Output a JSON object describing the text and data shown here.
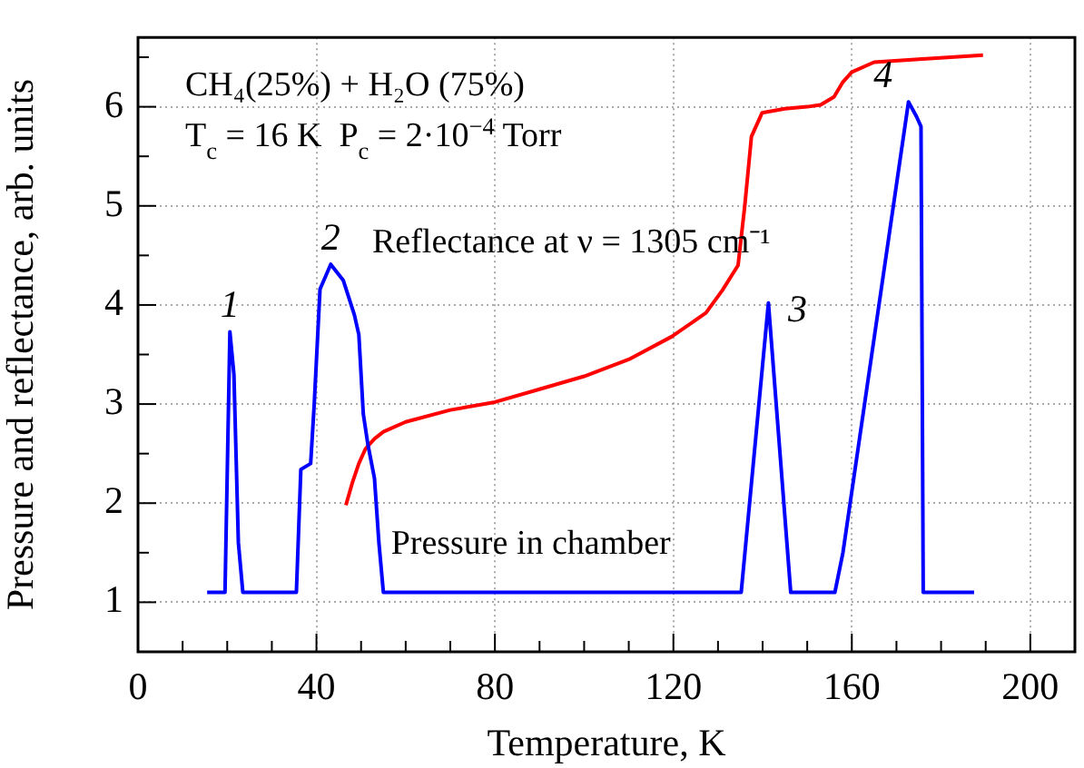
{
  "chart_data": {
    "type": "line",
    "xlabel": "Temperature, K",
    "ylabel": "Pressure and reflectance, arb. units",
    "xlim": [
      0,
      210
    ],
    "ylim": [
      0.5,
      6.7
    ],
    "xticks": [
      0,
      {
        "value": 10,
        "label": null
      },
      {
        "value": 20,
        "label": null
      },
      {
        "value": 30,
        "label": null
      },
      40,
      {
        "value": 50,
        "label": null
      },
      {
        "value": 60,
        "label": null
      },
      {
        "value": 70,
        "label": null
      },
      80,
      {
        "value": 90,
        "label": null
      },
      {
        "value": 100,
        "label": null
      },
      {
        "value": 110,
        "label": null
      },
      120,
      {
        "value": 130,
        "label": null
      },
      {
        "value": 140,
        "label": null
      },
      {
        "value": 150,
        "label": null
      },
      160,
      {
        "value": 170,
        "label": null
      },
      {
        "value": 180,
        "label": null
      },
      {
        "value": 190,
        "label": null
      },
      200
    ],
    "yticks": [
      {
        "value": 0.5,
        "label": null
      },
      1,
      {
        "value": 1.5,
        "label": null
      },
      2,
      {
        "value": 2.5,
        "label": null
      },
      3,
      {
        "value": 3.5,
        "label": null
      },
      4,
      {
        "value": 4.5,
        "label": null
      },
      5,
      {
        "value": 5.5,
        "label": null
      },
      6,
      {
        "value": 6.5,
        "label": null
      }
    ],
    "grid": true,
    "legend": false,
    "marker": "none",
    "line_style": "solid",
    "series": [
      {
        "name": "Pressure in chamber",
        "color": "#0000ff",
        "x": [
          15.5,
          19.5,
          20.6,
          21.5,
          22.5,
          23.5,
          35.5,
          36.5,
          38.7,
          39.5,
          40.8,
          43.2,
          46,
          48.5,
          49.5,
          50.5,
          51.5,
          53,
          54,
          55,
          135.2,
          141.3,
          146.3,
          156.2,
          158,
          172.7,
          174.5,
          175.5,
          176,
          187.4
        ],
        "values": [
          1.1,
          1.1,
          3.73,
          3.3,
          1.6,
          1.1,
          1.1,
          2.34,
          2.4,
          3.0,
          4.16,
          4.41,
          4.25,
          3.9,
          3.7,
          2.9,
          2.6,
          2.25,
          1.6,
          1.1,
          1.1,
          4.02,
          1.1,
          1.1,
          1.5,
          6.05,
          5.9,
          5.8,
          1.1,
          1.1
        ]
      },
      {
        "name": "Reflectance at ν = 1305 cm⁻¹",
        "color": "#ff0000",
        "x": [
          46.6,
          48,
          49.5,
          51,
          53,
          55,
          60,
          70,
          80,
          90,
          100,
          110,
          119.6,
          127.3,
          131,
          134.5,
          136,
          137.5,
          139.9,
          145,
          150,
          153,
          156,
          158,
          160,
          165,
          175,
          189.4
        ],
        "values": [
          1.98,
          2.2,
          2.4,
          2.55,
          2.65,
          2.72,
          2.82,
          2.94,
          3.02,
          3.15,
          3.28,
          3.45,
          3.68,
          3.92,
          4.15,
          4.4,
          5.0,
          5.7,
          5.94,
          5.98,
          6.0,
          6.02,
          6.1,
          6.25,
          6.35,
          6.45,
          6.48,
          6.52
        ]
      }
    ],
    "annotations": [
      "CH₄(25%) + H₂O (75%)",
      "T$_{c}$ = 16 K  P$_{c}$ = 2·10$^{−4}$ Torr",
      {
        "text": "1",
        "x": 20.6,
        "y": 3.73
      },
      {
        "text": "2",
        "x": 43.2,
        "y": 4.41
      },
      {
        "text": "3",
        "x": 141.3,
        "y": 4.02
      },
      {
        "text": "4",
        "x": 172.7,
        "y": 6.05
      }
    ]
  }
}
